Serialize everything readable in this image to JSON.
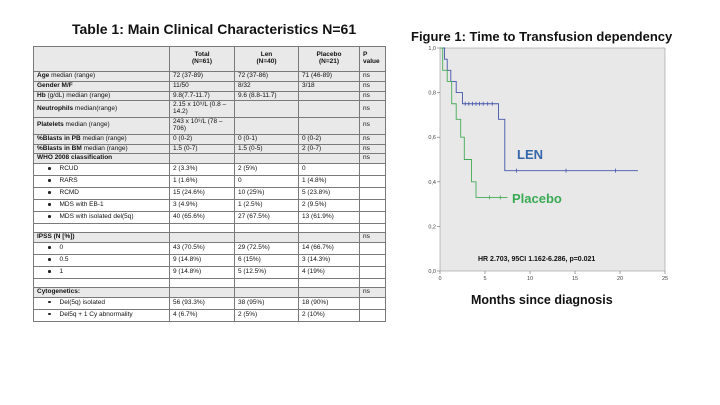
{
  "table": {
    "title": "Table 1: Main Clinical Characteristics N=61",
    "header": {
      "c1": "",
      "c2": [
        "Total",
        "(N=61)"
      ],
      "c3": [
        "Len",
        "(N=40)"
      ],
      "c4": [
        "Placebo",
        "(N=21)"
      ],
      "c5": "P value"
    },
    "rows": [
      {
        "name": "age",
        "bold": "Age",
        "rest": " median (range)",
        "total": "72 (37-89)",
        "len": "72 (37-86)",
        "placebo": "71 (46-89)",
        "p": "ns"
      },
      {
        "name": "gender",
        "bold": "Gender M/F",
        "rest": "",
        "total": "11/50",
        "len": "8/32",
        "placebo": "3/18",
        "p": "ns"
      },
      {
        "name": "hb",
        "bold": "Hb",
        "rest": " (g/dL) median (range)",
        "total": "9.8(7.7-11.7)",
        "len": "9.6 (8.8-11.7)",
        "placebo": "",
        "p": "ns"
      },
      {
        "name": "neutrophils",
        "bold": "Neutrophils",
        "rest": " median(range)",
        "total": "2.15 x 10⁹/L (0.8 – 14.2)",
        "len": "",
        "placebo": "",
        "p": "ns"
      },
      {
        "name": "platelets",
        "bold": "Platelets",
        "rest": " median (range)",
        "total": "243 x 10⁹/L (78 – 706)",
        "len": "",
        "placebo": "",
        "p": "ns"
      },
      {
        "name": "blasts-pb",
        "bold": "%Blasts in PB",
        "rest": " median (range)",
        "total": "0 (0-2)",
        "len": "0 (0-1)",
        "placebo": "0 (0-2)",
        "p": "ns"
      },
      {
        "name": "blasts-bm",
        "bold": "%Blasts in BM",
        "rest": " median (range)",
        "total": "1.5 (0-7)",
        "len": "1.5 (0-5)",
        "placebo": "2 (0-7)",
        "p": "ns"
      }
    ],
    "who": {
      "heading": "WHO 2008 classification",
      "p": "ns",
      "items": [
        {
          "label": "RCUD",
          "total": "2 (3.3%)",
          "len": "2 (5%)",
          "placebo": "0"
        },
        {
          "label": "RARS",
          "total": "1 (1.6%)",
          "len": "0",
          "placebo": "1 (4.8%)"
        },
        {
          "label": "RCMD",
          "total": "15 (24.6%)",
          "len": "10 (25%)",
          "placebo": "5 (23.8%)"
        },
        {
          "label": "MDS with EB-1",
          "total": "3 (4.9%)",
          "len": "1 (2.5%)",
          "placebo": "2 (9.5%)"
        },
        {
          "label": "MDS with isolated del(5q)",
          "total": "40 (65.6%)",
          "len": "27 (67.5%)",
          "placebo": "13 (61.9%)"
        }
      ]
    },
    "ipss": {
      "heading": "IPSS (N [%])",
      "p": "ns",
      "items": [
        {
          "label": "0",
          "total": "43 (70.5%)",
          "len": "29 (72.5%)",
          "placebo": "14 (66.7%)"
        },
        {
          "label": "0.5",
          "total": "9 (14.8%)",
          "len": "6 (15%)",
          "placebo": "3 (14.3%)"
        },
        {
          "label": "1",
          "total": "9 (14.8%)",
          "len": "5 (12.5%)",
          "placebo": "4 (19%)"
        }
      ]
    },
    "cyto": {
      "heading": "Cytogenetics:",
      "p": "ns",
      "items": [
        {
          "label": "Del(5q) isolated",
          "total": "56 (93.3%)",
          "len": "38 (95%)",
          "placebo": "18 (90%)"
        },
        {
          "label": "Del5q + 1 Cy abnormality",
          "total": "4 (6.7%)",
          "len": "2 (5%)",
          "placebo": "2 (10%)"
        }
      ]
    }
  },
  "chart_data": {
    "type": "line",
    "title": "Figure 1: Time to Transfusion dependency",
    "xlabel": "Months since diagnosis",
    "ylabel": "",
    "xlim": [
      0,
      25
    ],
    "ylim": [
      0,
      1.0
    ],
    "xticks": [
      0,
      5,
      10,
      15,
      20,
      25
    ],
    "yticks": [
      0.0,
      0.2,
      0.4,
      0.6,
      0.8,
      1.0
    ],
    "ytick_labels": [
      "0,0",
      "0,2",
      "0,4",
      "0,6",
      "0,8",
      "1,0"
    ],
    "annotation": "HR 2.703, 95CI 1.162-6.286, p=0.021",
    "colors": {
      "plot_bg": "#e8e8e8",
      "len": "#4455aa",
      "placebo": "#44aa55",
      "len_label": "#3366aa",
      "placebo_label": "#3aaa55"
    },
    "series": [
      {
        "name": "LEN",
        "steps": [
          [
            0,
            1.0
          ],
          [
            0.5,
            0.95
          ],
          [
            0.8,
            0.9
          ],
          [
            1.2,
            0.85
          ],
          [
            1.8,
            0.8
          ],
          [
            2.5,
            0.75
          ],
          [
            6.5,
            0.68
          ],
          [
            7.2,
            0.45
          ],
          [
            22,
            0.45
          ]
        ],
        "censored": [
          [
            2.8,
            0.75
          ],
          [
            3.2,
            0.75
          ],
          [
            3.6,
            0.75
          ],
          [
            4.0,
            0.75
          ],
          [
            4.4,
            0.75
          ],
          [
            4.8,
            0.75
          ],
          [
            5.3,
            0.75
          ],
          [
            5.8,
            0.75
          ],
          [
            8.5,
            0.45
          ],
          [
            14,
            0.45
          ],
          [
            19.5,
            0.45
          ]
        ]
      },
      {
        "name": "Placebo",
        "steps": [
          [
            0,
            1.0
          ],
          [
            0.3,
            0.9
          ],
          [
            0.8,
            0.85
          ],
          [
            1.3,
            0.75
          ],
          [
            1.8,
            0.68
          ],
          [
            2.3,
            0.6
          ],
          [
            2.7,
            0.5
          ],
          [
            3.5,
            0.4
          ],
          [
            4.0,
            0.33
          ],
          [
            7.5,
            0.33
          ]
        ],
        "censored": [
          [
            5.5,
            0.33
          ],
          [
            6.7,
            0.33
          ]
        ]
      }
    ]
  }
}
